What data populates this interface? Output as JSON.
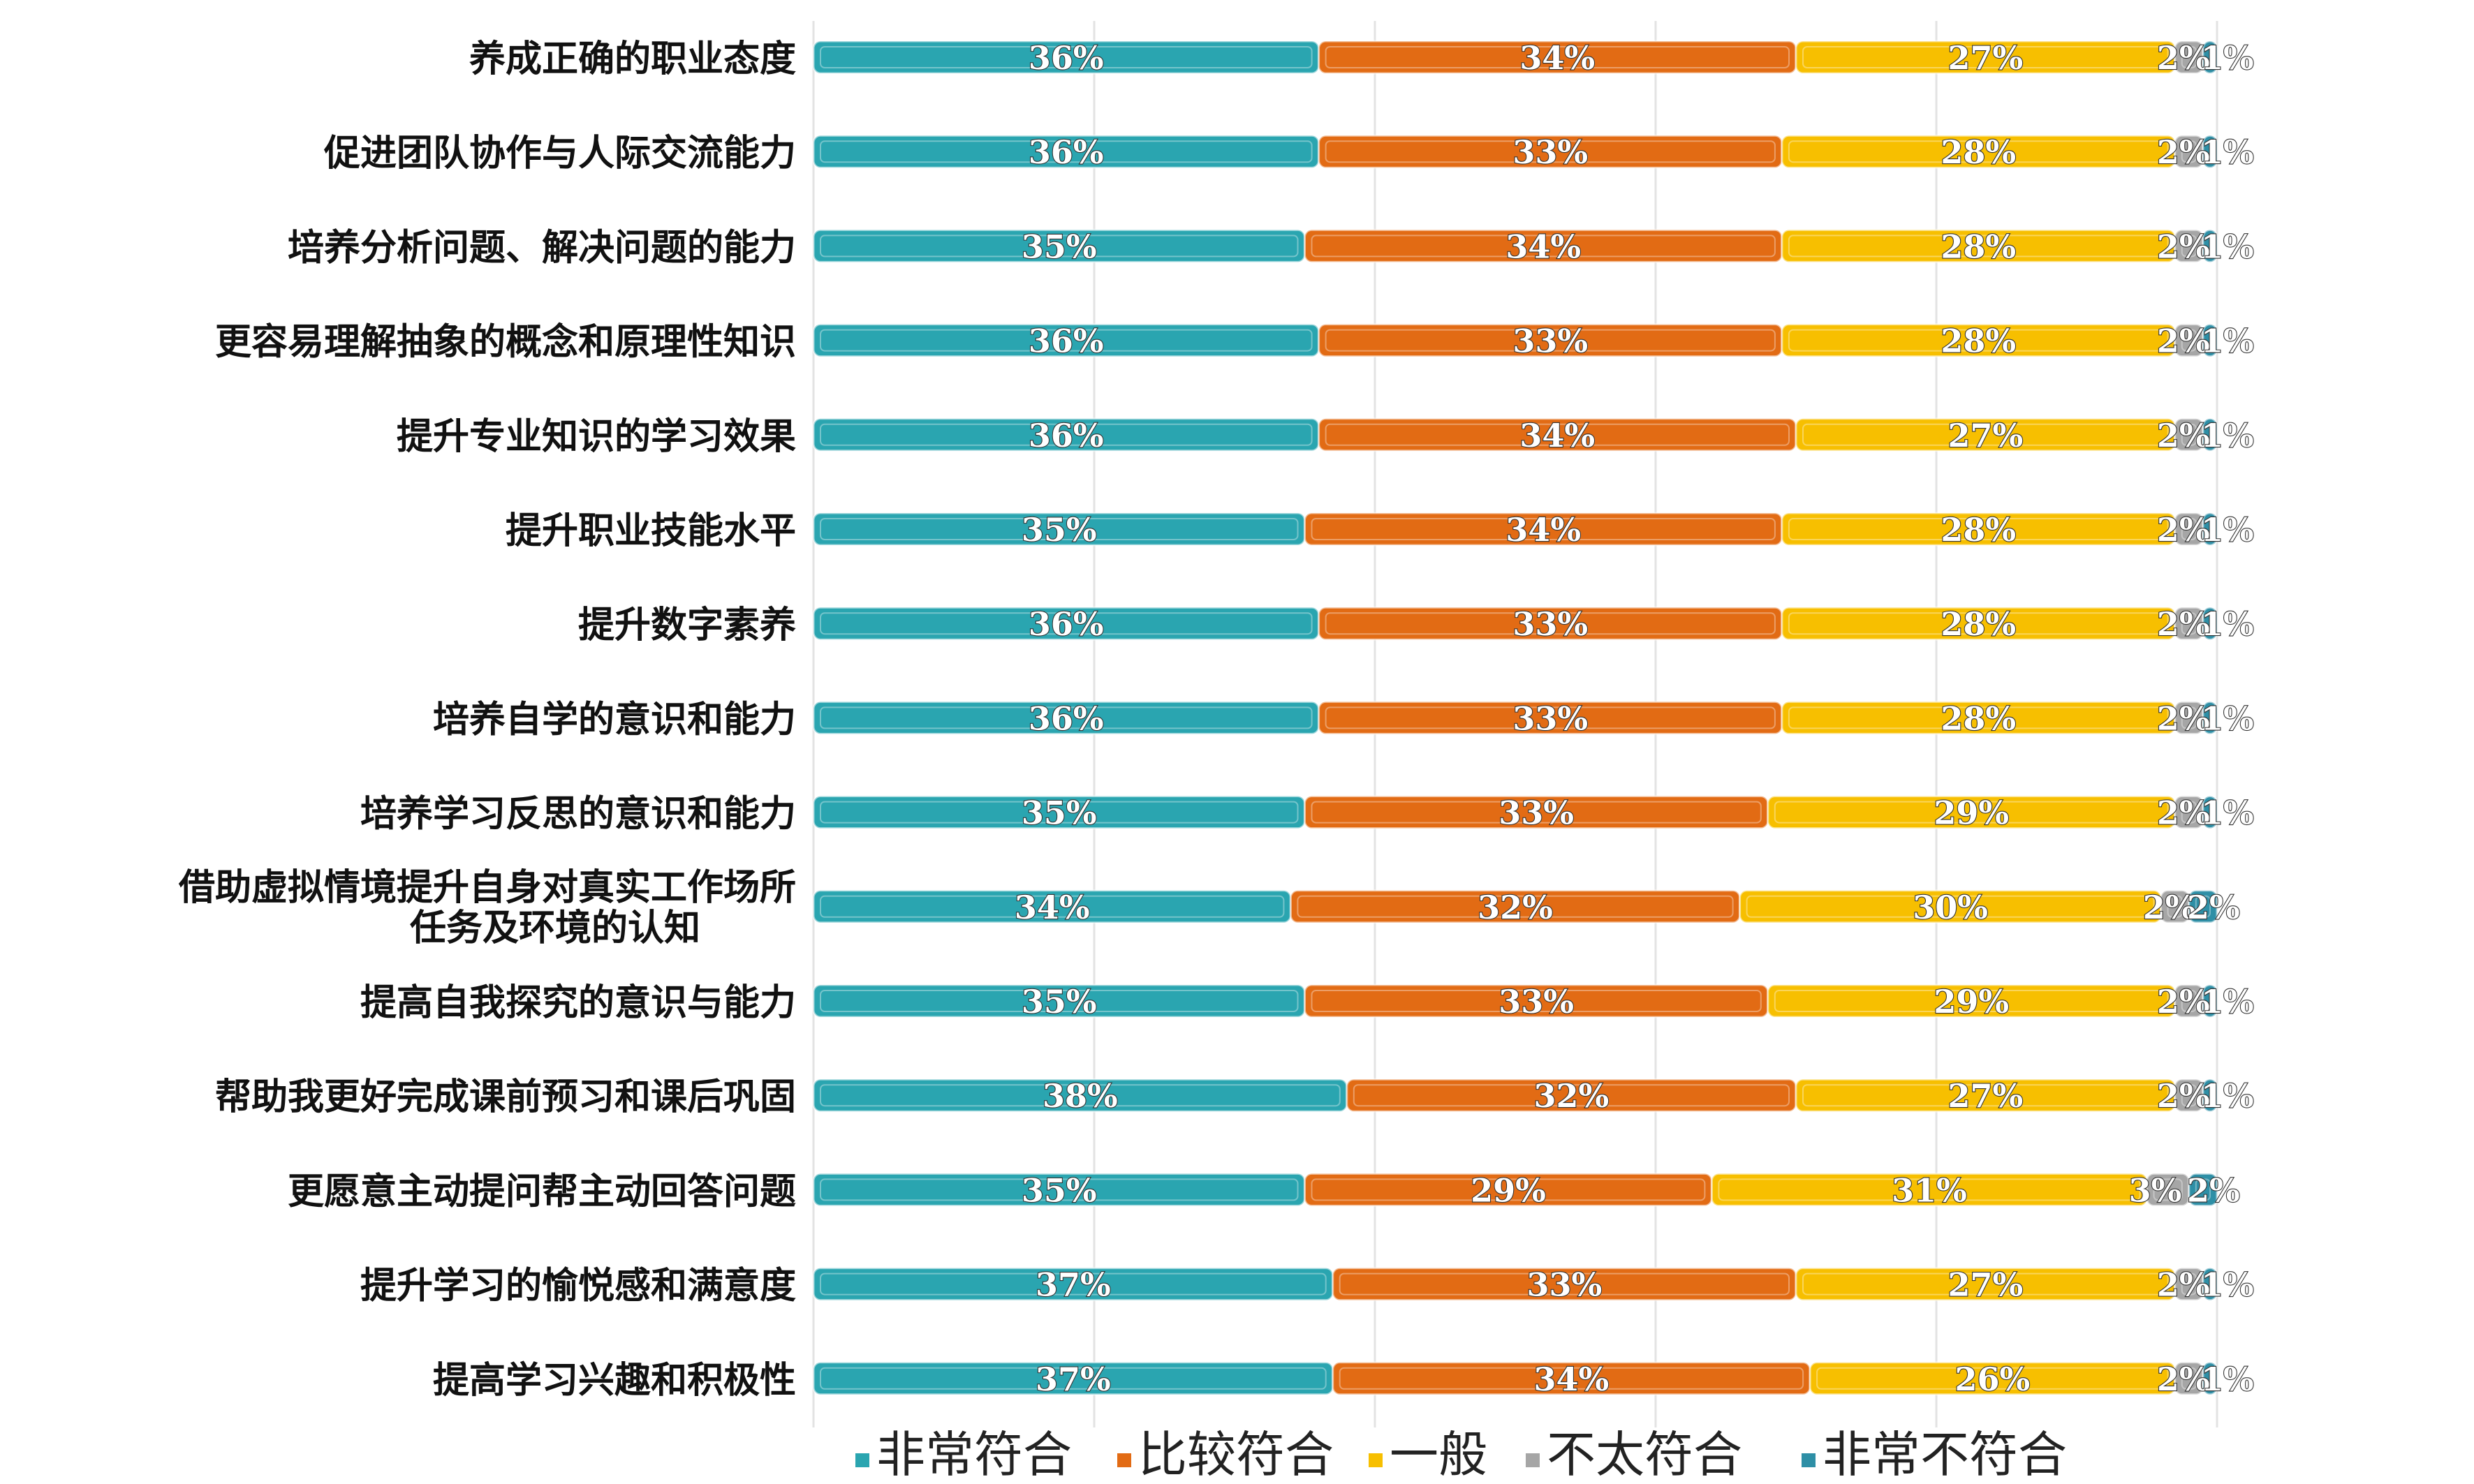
{
  "chart_data": {
    "type": "bar",
    "stacked": true,
    "orientation": "horizontal",
    "grid": true,
    "legend_position": "bottom",
    "categories": [
      "养成正确的职业态度",
      "促进团队协作与人际交流能力",
      "培养分析问题、解决问题的能力",
      "更容易理解抽象的概念和原理性知识",
      "提升专业知识的学习效果",
      "提升职业技能水平",
      "提升数字素养",
      "培养自学的意识和能力",
      "培养学习反思的意识和能力",
      "借助虚拟情境提升自身对真实工作场所任务及环境的认知",
      "提高自我探究的意识与能力",
      "帮助我更好完成课前预习和课后巩固",
      "更愿意主动提问帮主动回答问题",
      "提升学习的愉悦感和满意度",
      "提高学习兴趣和积极性"
    ],
    "category_lines": [
      [
        "养成正确的职业态度"
      ],
      [
        "促进团队协作与人际交流能力"
      ],
      [
        "培养分析问题、解决问题的能力"
      ],
      [
        "更容易理解抽象的概念和原理性知识"
      ],
      [
        "提升专业知识的学习效果"
      ],
      [
        "提升职业技能水平"
      ],
      [
        "提升数字素养"
      ],
      [
        "培养自学的意识和能力"
      ],
      [
        "培养学习反思的意识和能力"
      ],
      [
        "借助虚拟情境提升自身对真实工作场所",
        "任务及环境的认知"
      ],
      [
        "提高自我探究的意识与能力"
      ],
      [
        "帮助我更好完成课前预习和课后巩固"
      ],
      [
        "更愿意主动提问帮主动回答问题"
      ],
      [
        "提升学习的愉悦感和满意度"
      ],
      [
        "提高学习兴趣和积极性"
      ]
    ],
    "series": [
      {
        "name": "非常符合",
        "color": "#2aa5b0",
        "values": [
          36,
          36,
          35,
          36,
          36,
          35,
          36,
          36,
          35,
          34,
          35,
          38,
          35,
          37,
          37
        ]
      },
      {
        "name": "比较符合",
        "color": "#e26b14",
        "values": [
          34,
          33,
          34,
          33,
          34,
          34,
          33,
          33,
          33,
          32,
          33,
          32,
          29,
          33,
          34
        ]
      },
      {
        "name": "一般",
        "color": "#f7bf00",
        "values": [
          27,
          28,
          28,
          28,
          27,
          28,
          28,
          28,
          29,
          30,
          29,
          27,
          31,
          27,
          26
        ]
      },
      {
        "name": "不太符合",
        "color": "#a6a6a6",
        "values": [
          2,
          2,
          2,
          2,
          2,
          2,
          2,
          2,
          2,
          2,
          2,
          2,
          3,
          2,
          2
        ]
      },
      {
        "name": "非常不符合",
        "color": "#2e8fa6",
        "values": [
          1,
          1,
          1,
          1,
          1,
          1,
          1,
          1,
          1,
          2,
          1,
          1,
          2,
          1,
          1
        ]
      }
    ],
    "value_suffix": "%",
    "xlim": [
      0,
      100
    ]
  }
}
